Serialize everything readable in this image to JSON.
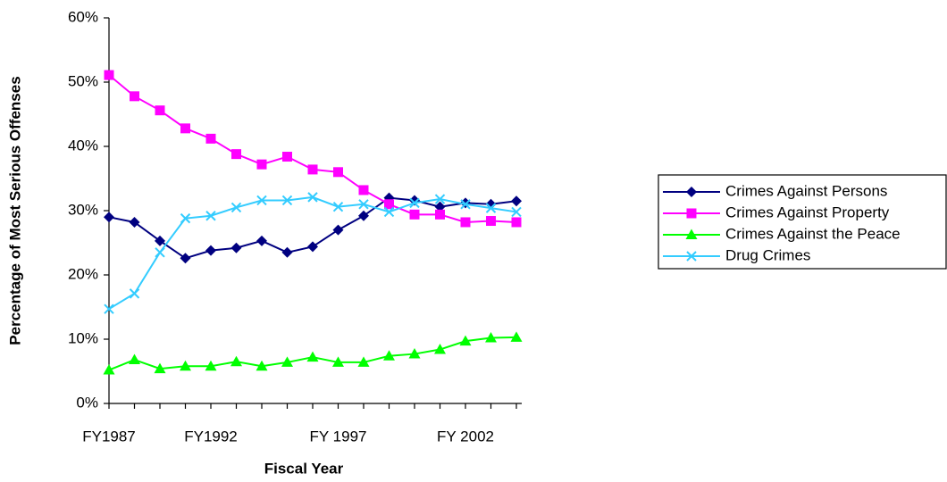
{
  "chart_data": {
    "type": "line",
    "x_label": "Fiscal Year",
    "y_label": "Percentage of Most Serious Offenses",
    "categories": [
      "FY1987",
      null,
      null,
      null,
      "FY1992",
      null,
      null,
      null,
      null,
      "FY 1997",
      null,
      null,
      null,
      null,
      "FY 2002",
      null,
      null
    ],
    "ylim": [
      0,
      60
    ],
    "yticks": [
      {
        "value": 0,
        "label": "0%"
      },
      {
        "value": 10,
        "label": "10%"
      },
      {
        "value": 20,
        "label": "20%"
      },
      {
        "value": 30,
        "label": "30%"
      },
      {
        "value": 40,
        "label": "40%"
      },
      {
        "value": 50,
        "label": "50%"
      },
      {
        "value": 60,
        "label": "60%"
      }
    ],
    "legend": "right",
    "series": [
      {
        "name": "Crimes Against Persons",
        "color": "#000080",
        "marker": "diamond",
        "values": [
          29.0,
          28.2,
          25.3,
          22.6,
          23.8,
          24.2,
          25.3,
          23.5,
          24.4,
          27.0,
          29.2,
          32.0,
          31.6,
          30.6,
          31.2,
          31.0,
          31.5
        ]
      },
      {
        "name": "Crimes Against Property",
        "color": "#ff00ff",
        "marker": "square",
        "values": [
          51.1,
          47.8,
          45.6,
          42.8,
          41.2,
          38.8,
          37.2,
          38.4,
          36.4,
          36.0,
          33.2,
          31.0,
          29.4,
          29.4,
          28.2,
          28.4,
          28.2
        ]
      },
      {
        "name": "Crimes Against the Peace",
        "color": "#00ff00",
        "marker": "triangle",
        "values": [
          5.2,
          6.8,
          5.4,
          5.8,
          5.8,
          6.5,
          5.8,
          6.4,
          7.2,
          6.4,
          6.4,
          7.4,
          7.7,
          8.4,
          9.7,
          10.2,
          10.3
        ]
      },
      {
        "name": "Drug Crimes",
        "color": "#33ccff",
        "marker": "x",
        "values": [
          14.7,
          17.1,
          23.5,
          28.8,
          29.2,
          30.5,
          31.6,
          31.6,
          32.1,
          30.6,
          31.0,
          29.8,
          31.2,
          31.8,
          31.0,
          30.4,
          29.8
        ]
      }
    ]
  }
}
